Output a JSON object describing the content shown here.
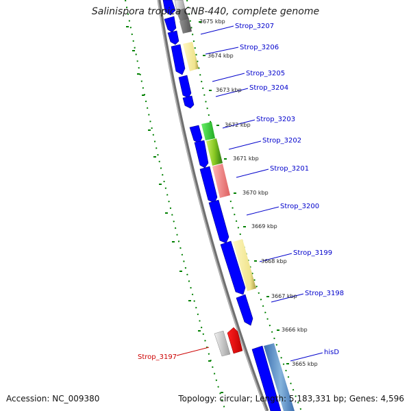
{
  "title": "Salinispora tropica CNB-440, complete genome",
  "footer": {
    "accession": "Accession: NC_009380",
    "summary": "Topology: circular; Length: 5,183,331 bp; Genes: 4,596"
  },
  "colors": {
    "backbone": "#808080",
    "ticks": "#008000",
    "cds_blue": "#0000ff",
    "label_blue": "#0000cc",
    "label_red": "#cc0000"
  },
  "kbp_ticks": [
    "3675 kbp",
    "3674 kbp",
    "3673 kbp",
    "3672 kbp",
    "3671 kbp",
    "3670 kbp",
    "3669 kbp",
    "3668 kbp",
    "3667 kbp",
    "3666 kbp",
    "3665 kbp"
  ],
  "gene_labels": [
    {
      "text": "Strop_3207",
      "color": "blue"
    },
    {
      "text": "Strop_3206",
      "color": "blue"
    },
    {
      "text": "Strop_3205",
      "color": "blue"
    },
    {
      "text": "Strop_3204",
      "color": "blue"
    },
    {
      "text": "Strop_3203",
      "color": "blue"
    },
    {
      "text": "Strop_3202",
      "color": "blue"
    },
    {
      "text": "Strop_3201",
      "color": "blue"
    },
    {
      "text": "Strop_3200",
      "color": "blue"
    },
    {
      "text": "Strop_3199",
      "color": "blue"
    },
    {
      "text": "Strop_3198",
      "color": "blue"
    },
    {
      "text": "hisD",
      "color": "blue"
    },
    {
      "text": "Strop_3197",
      "color": "red"
    }
  ]
}
